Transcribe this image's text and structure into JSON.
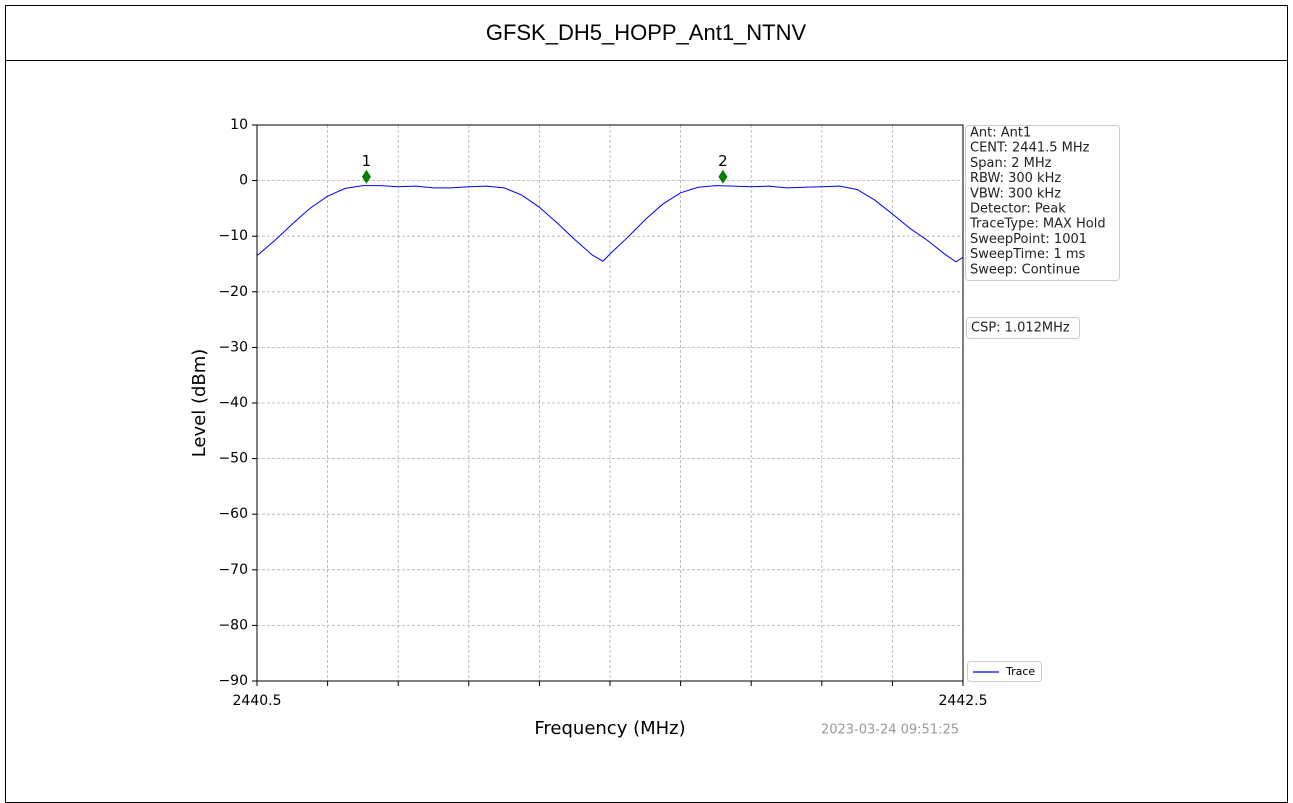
{
  "chart_data": {
    "type": "line",
    "title": "GFSK_DH5_HOPP_Ant1_NTNV",
    "xlabel": "Frequency (MHz)",
    "ylabel": "Level (dBm)",
    "timestamp": "2023-03-24 09:51:25",
    "xlim": [
      2440.5,
      2442.5
    ],
    "xticks": [
      2440.5,
      {
        "value": 2440.7,
        "label": null
      },
      {
        "value": 2440.9,
        "label": null
      },
      {
        "value": 2441.1,
        "label": null
      },
      {
        "value": 2441.3,
        "label": null
      },
      {
        "value": 2441.5,
        "label": null
      },
      {
        "value": 2441.7,
        "label": null
      },
      {
        "value": 2441.9,
        "label": null
      },
      {
        "value": 2442.1,
        "label": null
      },
      {
        "value": 2442.3,
        "label": null
      },
      2442.5
    ],
    "ylim": [
      -90,
      10
    ],
    "yticks": [
      10,
      0,
      {
        "value": -10,
        "label": "−10"
      },
      {
        "value": -20,
        "label": "−20"
      },
      {
        "value": -30,
        "label": "−30"
      },
      {
        "value": -40,
        "label": "−40"
      },
      {
        "value": -50,
        "label": "−50"
      },
      {
        "value": -60,
        "label": "−60"
      },
      {
        "value": -70,
        "label": "−70"
      },
      {
        "value": -80,
        "label": "−80"
      },
      {
        "value": -90,
        "label": "−90"
      }
    ],
    "grid": true,
    "legend": "lower right",
    "x": [
      2440.5,
      2440.55,
      2440.6,
      2440.65,
      2440.7,
      2440.75,
      2440.8,
      2440.85,
      2440.9,
      2440.95,
      2441.0,
      2441.05,
      2441.1,
      2441.15,
      2441.2,
      2441.25,
      2441.3,
      2441.35,
      2441.4,
      2441.45,
      2441.48,
      2441.5,
      2441.55,
      2441.6,
      2441.65,
      2441.7,
      2441.75,
      2441.8,
      2441.85,
      2441.9,
      2441.95,
      2442.0,
      2442.05,
      2442.1,
      2442.15,
      2442.2,
      2442.25,
      2442.3,
      2442.35,
      2442.4,
      2442.45,
      2442.48,
      2442.5
    ],
    "series": [
      {
        "name": "Trace",
        "color": "#0000ff",
        "values": [
          -13.5,
          -10.8,
          -7.8,
          -5.0,
          -2.8,
          -1.4,
          -0.9,
          -0.9,
          -1.1,
          -1.0,
          -1.3,
          -1.3,
          -1.1,
          -1.0,
          -1.3,
          -2.6,
          -4.8,
          -7.6,
          -10.6,
          -13.4,
          -14.5,
          -13.2,
          -10.2,
          -7.0,
          -4.2,
          -2.2,
          -1.2,
          -0.9,
          -1.0,
          -1.1,
          -1.0,
          -1.3,
          -1.2,
          -1.1,
          -1.0,
          -1.6,
          -3.5,
          -6.0,
          -8.6,
          -10.8,
          -13.3,
          -14.6,
          -13.8
        ]
      }
    ],
    "markers": [
      {
        "label": "1",
        "x": 2440.81,
        "y": 0.7,
        "color": "#008000"
      },
      {
        "label": "2",
        "x": 2441.82,
        "y": 0.7,
        "color": "#008000"
      }
    ],
    "info": [
      "Ant: Ant1",
      "CENT: 2441.5 MHz",
      "Span: 2 MHz",
      "RBW: 300 kHz",
      "VBW: 300 kHz",
      "Detector: Peak",
      "TraceType: MAX Hold",
      "SweepPoint: 1001",
      "SweepTime: 1 ms",
      "Sweep: Continue"
    ],
    "csp": "CSP: 1.012MHz"
  }
}
